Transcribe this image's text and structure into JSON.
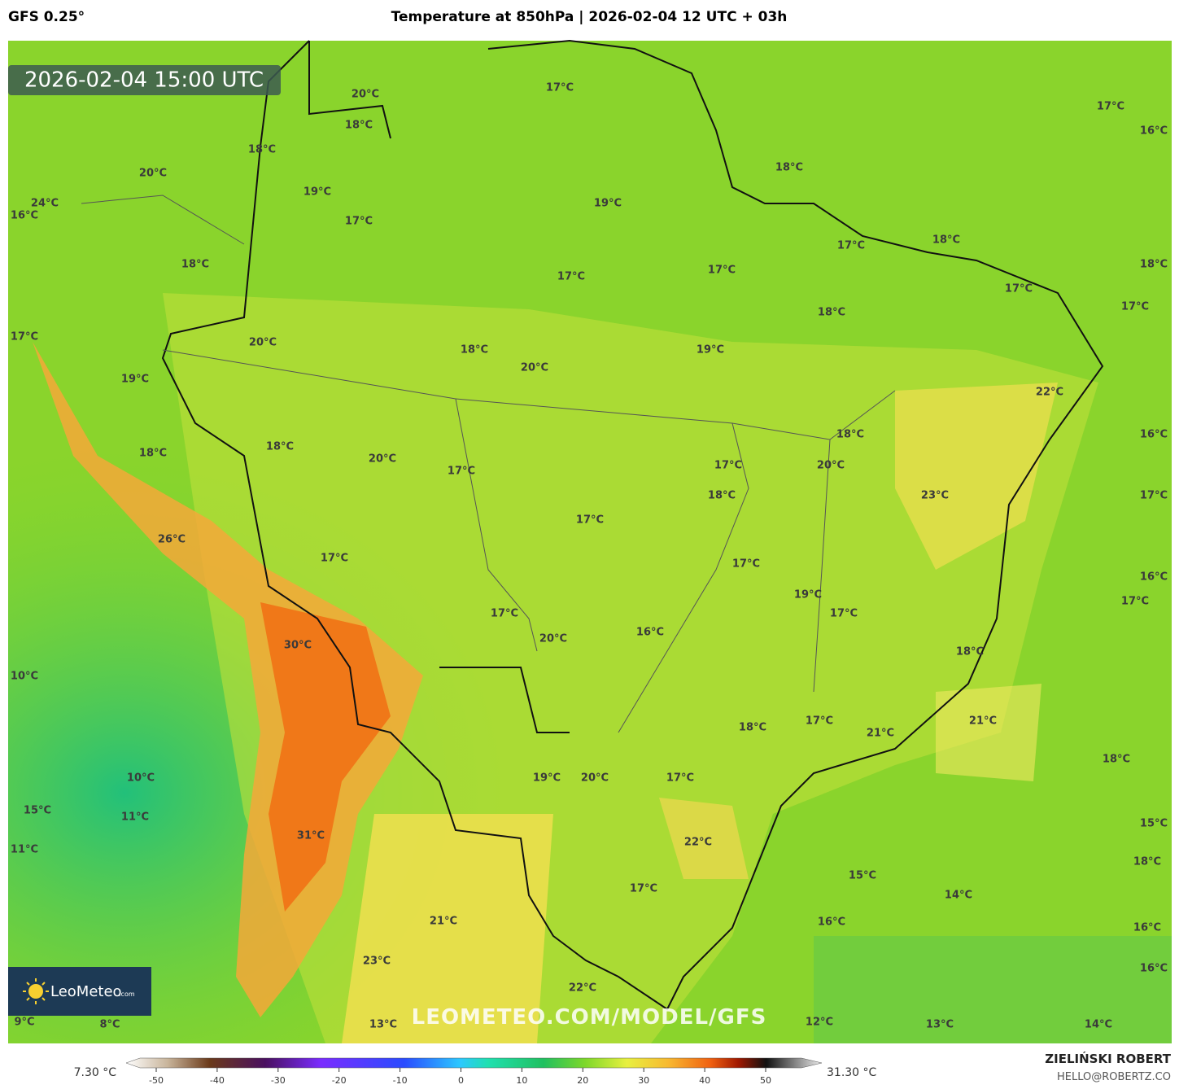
{
  "header": {
    "model": "GFS 0.25°",
    "title": "Temperature at 850hPa | 2026-02-04 12 UTC + 03h"
  },
  "timestamp": "2026-02-04 15:00 UTC",
  "map": {
    "labels": [
      "20°C",
      "18°C",
      "18°C",
      "17°C",
      "17°C",
      "16°C",
      "20°C",
      "18°C",
      "19°C",
      "19°C",
      "17°C",
      "24°C",
      "16°C",
      "17°C",
      "18°C",
      "18°C",
      "17°C",
      "17°C",
      "18°C",
      "17°C",
      "18°C",
      "17°C",
      "17°C",
      "20°C",
      "18°C",
      "19°C",
      "20°C",
      "19°C",
      "22°C",
      "18°C",
      "16°C",
      "18°C",
      "18°C",
      "20°C",
      "17°C",
      "20°C",
      "17°C",
      "18°C",
      "23°C",
      "17°C",
      "17°C",
      "26°C",
      "17°C",
      "17°C",
      "16°C",
      "19°C",
      "17°C",
      "17°C",
      "17°C",
      "20°C",
      "16°C",
      "30°C",
      "18°C",
      "10°C",
      "21°C",
      "18°C",
      "17°C",
      "21°C",
      "18°C",
      "19°C",
      "20°C",
      "17°C",
      "10°C",
      "15°C",
      "11°C",
      "15°C",
      "31°C",
      "22°C",
      "11°C",
      "18°C",
      "15°C",
      "17°C",
      "14°C",
      "21°C",
      "16°C",
      "16°C",
      "23°C",
      "16°C",
      "22°C",
      "9°C",
      "8°C",
      "13°C",
      "12°C",
      "13°C",
      "14°C"
    ]
  },
  "watermark": "LEOMETEO.COM/MODEL/GFS",
  "logo": {
    "name": "LeoMeteo",
    "suffix": ".com"
  },
  "colorbar": {
    "min_label": "7.30 °C",
    "max_label": "31.30 °C",
    "ticks": [
      -50,
      -40,
      -30,
      -20,
      -10,
      0,
      10,
      20,
      30,
      40,
      50
    ]
  },
  "credit": {
    "author": "ZIELIŃSKI ROBERT",
    "email": "HELLO@ROBERTZ.CO"
  }
}
